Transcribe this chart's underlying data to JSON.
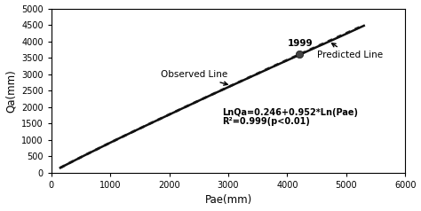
{
  "title": "",
  "xlabel": "Pae(mm)",
  "ylabel": "Qa(mm)",
  "xlim": [
    0,
    6000
  ],
  "ylim": [
    0,
    5000
  ],
  "xticks": [
    0,
    1000,
    2000,
    3000,
    4000,
    5000,
    6000
  ],
  "yticks": [
    0,
    500,
    1000,
    1500,
    2000,
    2500,
    3000,
    3500,
    4000,
    4500,
    5000
  ],
  "equation_text": "LnQa=0.246+0.952*Ln(Pae)",
  "r2_text": "R²=0.999(p<0.01)",
  "year_label": "1999",
  "year_point_x": 4200,
  "obs_label": "Observed Line",
  "pred_label": "Predicted Line",
  "a": 0.246,
  "b": 0.952,
  "x_start": 150,
  "x_end_obs": 5300,
  "x_end_pred": 5300,
  "obs_color": "#111111",
  "pred_color": "#333333",
  "point_color": "#444444",
  "background_color": "#ffffff",
  "figsize": [
    4.74,
    2.38
  ],
  "dpi": 100
}
